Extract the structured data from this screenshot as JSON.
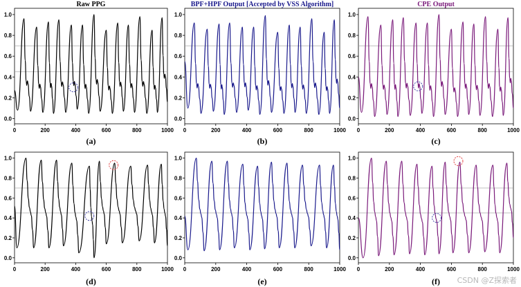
{
  "figure": {
    "watermark": "CSDN @Z探索者"
  },
  "colors": {
    "raw": "#000000",
    "bpf": "#1a1a8c",
    "cpe": "#7a1a7a",
    "ref_line": "#9a9a9a",
    "axis": "#000000",
    "circle_red": "#e03030",
    "circle_blue": "#3030a0"
  },
  "chart_data": [
    {
      "id": "a",
      "type": "line",
      "title": "Raw PPG",
      "title_color": "#000000",
      "label": "(a)",
      "color_key": "raw",
      "shape": "raw",
      "x_range": [
        0,
        1000
      ],
      "y_range": [
        0,
        1
      ],
      "xticks": [
        0,
        200,
        400,
        600,
        800,
        1000
      ],
      "yticks": [
        "0.0",
        "0.2",
        "0.4",
        "0.6",
        "0.8",
        "1.0"
      ],
      "ref_lines": [
        0.45,
        0.7
      ],
      "peaks": [
        [
          62,
          0.96
        ],
        [
          145,
          0.88
        ],
        [
          222,
          0.93
        ],
        [
          290,
          0.95
        ],
        [
          372,
          0.9
        ],
        [
          445,
          0.9
        ],
        [
          520,
          1.0
        ],
        [
          600,
          0.85
        ],
        [
          675,
          0.92
        ],
        [
          745,
          0.9
        ],
        [
          820,
          0.98
        ],
        [
          900,
          0.85
        ],
        [
          965,
          0.97
        ]
      ],
      "troughs": [
        [
          20,
          0.08
        ],
        [
          105,
          0.07
        ],
        [
          185,
          0.06
        ],
        [
          255,
          0.05
        ],
        [
          335,
          0.06
        ],
        [
          410,
          0.09
        ],
        [
          485,
          0.05
        ],
        [
          560,
          0.07
        ],
        [
          640,
          0.05
        ],
        [
          712,
          0.07
        ],
        [
          785,
          0.06
        ],
        [
          865,
          0.05
        ],
        [
          935,
          0.06
        ]
      ],
      "start_y": 0.27,
      "end_y": 0.16,
      "circles": [
        {
          "x": 385,
          "y": 0.3,
          "color": "circle_blue"
        }
      ]
    },
    {
      "id": "b",
      "type": "line",
      "title": "BPF+HPF Output [Accepted by VSS Algorithm]",
      "title_color": "#1a1a8c",
      "label": "(b)",
      "color_key": "bpf",
      "shape": "filtered",
      "x_range": [
        0,
        1000
      ],
      "y_range": [
        0,
        1
      ],
      "xticks": [
        0,
        200,
        400,
        600,
        800,
        1000
      ],
      "yticks": [
        "0.0",
        "0.2",
        "0.4",
        "0.6",
        "0.8",
        "1.0"
      ],
      "ref_lines": [
        0.45,
        0.7
      ],
      "peaks": [
        [
          62,
          0.92
        ],
        [
          145,
          0.86
        ],
        [
          222,
          0.91
        ],
        [
          290,
          0.92
        ],
        [
          372,
          0.88
        ],
        [
          445,
          0.88
        ],
        [
          520,
          0.99
        ],
        [
          600,
          0.83
        ],
        [
          675,
          0.9
        ],
        [
          745,
          0.88
        ],
        [
          820,
          0.96
        ],
        [
          900,
          0.83
        ],
        [
          965,
          0.95
        ]
      ],
      "troughs": [
        [
          20,
          0.1
        ],
        [
          105,
          0.05
        ],
        [
          185,
          0.07
        ],
        [
          255,
          0.04
        ],
        [
          335,
          0.06
        ],
        [
          410,
          0.08
        ],
        [
          485,
          0.04
        ],
        [
          560,
          0.06
        ],
        [
          640,
          0.05
        ],
        [
          712,
          0.06
        ],
        [
          785,
          0.05
        ],
        [
          865,
          0.04
        ],
        [
          935,
          0.05
        ]
      ],
      "start_y": 0.55,
      "end_y": 0.1,
      "circles": []
    },
    {
      "id": "c",
      "type": "line",
      "title": "CPE Output",
      "title_color": "#7a1a7a",
      "label": "(c)",
      "color_key": "cpe",
      "shape": "cpe",
      "x_range": [
        0,
        1000
      ],
      "y_range": [
        0,
        1
      ],
      "xticks": [
        0,
        200,
        400,
        600,
        800,
        1000
      ],
      "yticks": [
        "0.0",
        "0.2",
        "0.4",
        "0.6",
        "0.8",
        "1.0"
      ],
      "ref_lines": [
        0.45,
        0.7
      ],
      "peaks": [
        [
          62,
          0.98
        ],
        [
          145,
          0.9
        ],
        [
          222,
          0.95
        ],
        [
          290,
          0.97
        ],
        [
          372,
          0.92
        ],
        [
          445,
          0.92
        ],
        [
          520,
          1.0
        ],
        [
          600,
          0.86
        ],
        [
          675,
          0.93
        ],
        [
          745,
          0.91
        ],
        [
          820,
          0.98
        ],
        [
          900,
          0.86
        ],
        [
          965,
          0.97
        ]
      ],
      "troughs": [
        [
          20,
          0.06
        ],
        [
          105,
          0.02
        ],
        [
          185,
          0.04
        ],
        [
          255,
          0.02
        ],
        [
          335,
          0.03
        ],
        [
          410,
          0.05
        ],
        [
          485,
          0.02
        ],
        [
          560,
          0.04
        ],
        [
          640,
          0.02
        ],
        [
          712,
          0.04
        ],
        [
          785,
          0.03
        ],
        [
          865,
          0.02
        ],
        [
          935,
          0.03
        ]
      ],
      "start_y": 0.4,
      "end_y": 0.1,
      "circles": [
        {
          "x": 385,
          "y": 0.31,
          "color": "circle_blue"
        }
      ]
    },
    {
      "id": "d",
      "type": "line",
      "title": "",
      "title_color": "#000000",
      "label": "(d)",
      "color_key": "raw",
      "shape": "raw_long",
      "x_range": [
        0,
        1000
      ],
      "y_range": [
        0,
        1
      ],
      "xticks": [
        0,
        200,
        400,
        600,
        800,
        1000
      ],
      "yticks": [
        "0.0",
        "0.2",
        "0.4",
        "0.6",
        "0.8",
        "1.0"
      ],
      "ref_lines": [
        0.45,
        0.7
      ],
      "peaks": [
        [
          75,
          1.0
        ],
        [
          175,
          0.98
        ],
        [
          275,
          0.98
        ],
        [
          375,
          0.95
        ],
        [
          490,
          0.92
        ],
        [
          555,
          0.97
        ],
        [
          655,
          0.95
        ],
        [
          760,
          0.92
        ],
        [
          870,
          0.93
        ],
        [
          960,
          0.94
        ]
      ],
      "troughs": [
        [
          15,
          0.1
        ],
        [
          125,
          0.1
        ],
        [
          225,
          0.1
        ],
        [
          320,
          0.12
        ],
        [
          420,
          0.05
        ],
        [
          520,
          0.0
        ],
        [
          600,
          0.14
        ],
        [
          705,
          0.15
        ],
        [
          815,
          0.17
        ],
        [
          915,
          0.15
        ]
      ],
      "start_y": 0.52,
      "end_y": 0.12,
      "circles": [
        {
          "x": 648,
          "y": 0.93,
          "color": "circle_red"
        },
        {
          "x": 490,
          "y": 0.42,
          "color": "circle_blue"
        }
      ]
    },
    {
      "id": "e",
      "type": "line",
      "title": "",
      "title_color": "#1a1a8c",
      "label": "(e)",
      "color_key": "bpf",
      "shape": "filtered_long",
      "x_range": [
        0,
        1000
      ],
      "y_range": [
        0,
        1
      ],
      "xticks": [
        0,
        200,
        400,
        600,
        800,
        1000
      ],
      "yticks": [
        "0.0",
        "0.2",
        "0.4",
        "0.6",
        "0.8",
        "1.0"
      ],
      "ref_lines": [
        0.45,
        0.7
      ],
      "peaks": [
        [
          75,
          1.0
        ],
        [
          175,
          0.97
        ],
        [
          275,
          0.97
        ],
        [
          375,
          0.94
        ],
        [
          470,
          0.92
        ],
        [
          560,
          0.96
        ],
        [
          660,
          0.95
        ],
        [
          760,
          0.93
        ],
        [
          870,
          0.93
        ],
        [
          960,
          0.93
        ]
      ],
      "troughs": [
        [
          20,
          0.08
        ],
        [
          125,
          0.07
        ],
        [
          225,
          0.08
        ],
        [
          320,
          0.1
        ],
        [
          420,
          0.08
        ],
        [
          515,
          0.09
        ],
        [
          610,
          0.1
        ],
        [
          710,
          0.1
        ],
        [
          815,
          0.12
        ],
        [
          915,
          0.1
        ]
      ],
      "start_y": 0.42,
      "end_y": 0.08,
      "circles": []
    },
    {
      "id": "f",
      "type": "line",
      "title": "",
      "title_color": "#7a1a7a",
      "label": "(f)",
      "color_key": "cpe",
      "shape": "cpe_long",
      "x_range": [
        0,
        1000
      ],
      "y_range": [
        0,
        1
      ],
      "xticks": [
        0,
        200,
        400,
        600,
        800,
        1000
      ],
      "yticks": [
        "0.0",
        "0.2",
        "0.4",
        "0.6",
        "0.8",
        "1.0"
      ],
      "ref_lines": [
        0.45,
        0.7
      ],
      "peaks": [
        [
          85,
          1.0
        ],
        [
          180,
          0.97
        ],
        [
          280,
          0.97
        ],
        [
          378,
          0.94
        ],
        [
          475,
          0.92
        ],
        [
          560,
          0.96
        ],
        [
          655,
          0.96
        ],
        [
          760,
          0.93
        ],
        [
          868,
          0.93
        ],
        [
          958,
          0.95
        ]
      ],
      "troughs": [
        [
          30,
          0.0
        ],
        [
          130,
          0.02
        ],
        [
          230,
          0.03
        ],
        [
          330,
          0.04
        ],
        [
          428,
          0.03
        ],
        [
          520,
          0.04
        ],
        [
          610,
          0.05
        ],
        [
          712,
          0.05
        ],
        [
          815,
          0.06
        ],
        [
          912,
          0.05
        ]
      ],
      "start_y": 0.4,
      "end_y": 0.2,
      "circles": [
        {
          "x": 645,
          "y": 0.97,
          "color": "circle_red"
        },
        {
          "x": 505,
          "y": 0.4,
          "color": "circle_blue"
        }
      ]
    }
  ]
}
